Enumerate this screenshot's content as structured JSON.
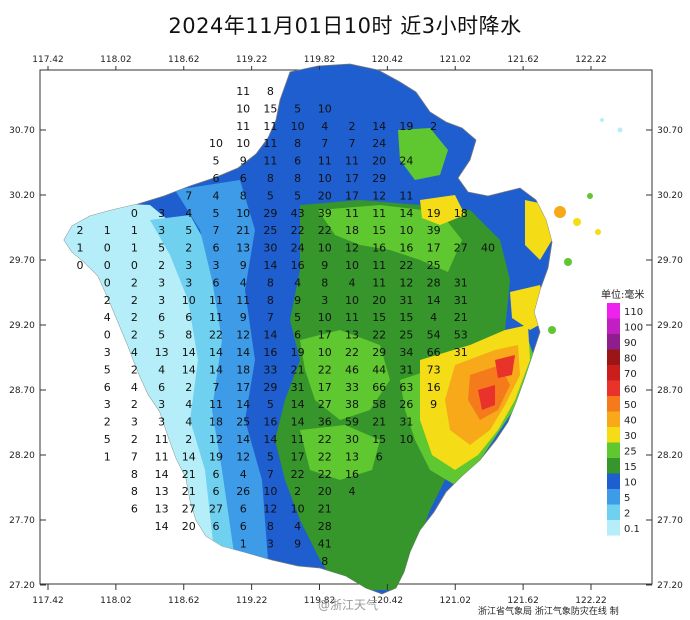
{
  "title": "2024年11月01日10时  近3小时降水",
  "axes": {
    "x_ticks": [
      "117.42",
      "118.02",
      "118.62",
      "119.22",
      "119.82",
      "120.42",
      "121.02",
      "121.62",
      "122.22"
    ],
    "y_ticks": [
      "30.70",
      "30.20",
      "29.70",
      "29.20",
      "28.70",
      "28.20",
      "27.70",
      "27.20"
    ]
  },
  "legend": {
    "title": "单位:毫米",
    "levels": [
      {
        "label": "110",
        "color": "#ee22ee"
      },
      {
        "label": "100",
        "color": "#c21fc2"
      },
      {
        "label": "90",
        "color": "#8e1e8e"
      },
      {
        "label": "80",
        "color": "#9a1616"
      },
      {
        "label": "70",
        "color": "#cc1d1d"
      },
      {
        "label": "60",
        "color": "#e8322a"
      },
      {
        "label": "50",
        "color": "#f47a1c"
      },
      {
        "label": "40",
        "color": "#f7a91a"
      },
      {
        "label": "30",
        "color": "#f4dc16"
      },
      {
        "label": "25",
        "color": "#5fc72f"
      },
      {
        "label": "15",
        "color": "#36952b"
      },
      {
        "label": "10",
        "color": "#1f5ecf"
      },
      {
        "label": "5",
        "color": "#3d9be8"
      },
      {
        "label": "2",
        "color": "#6fd0f0"
      },
      {
        "label": "0.1",
        "color": "#b5eef8"
      }
    ]
  },
  "grid_values": [
    [
      "",
      "",
      "",
      "",
      "",
      "",
      "11",
      "8",
      "",
      "",
      "",
      "",
      "",
      ""
    ],
    [
      "",
      "",
      "",
      "",
      "",
      "",
      "10",
      "15",
      "5",
      "10",
      "",
      "",
      "",
      ""
    ],
    [
      "",
      "",
      "",
      "",
      "",
      "",
      "11",
      "11",
      "10",
      "4",
      "2",
      "14",
      "19",
      "2"
    ],
    [
      "",
      "",
      "",
      "",
      "",
      "10",
      "10",
      "11",
      "8",
      "7",
      "7",
      "24",
      "",
      ""
    ],
    [
      "",
      "",
      "",
      "",
      "",
      "5",
      "9",
      "11",
      "6",
      "11",
      "11",
      "20",
      "24",
      ""
    ],
    [
      "",
      "",
      "",
      "",
      "",
      "6",
      "6",
      "8",
      "8",
      "10",
      "17",
      "29",
      "",
      ""
    ],
    [
      "",
      "",
      "",
      "",
      "7",
      "4",
      "8",
      "5",
      "5",
      "20",
      "17",
      "12",
      "11",
      ""
    ],
    [
      "",
      "",
      "0",
      "3",
      "4",
      "5",
      "10",
      "29",
      "43",
      "39",
      "11",
      "11",
      "14",
      "19",
      "18"
    ],
    [
      "2",
      "1",
      "1",
      "3",
      "5",
      "7",
      "21",
      "25",
      "22",
      "22",
      "18",
      "15",
      "10",
      "39"
    ],
    [
      "1",
      "0",
      "1",
      "5",
      "2",
      "6",
      "13",
      "30",
      "24",
      "10",
      "12",
      "16",
      "16",
      "17",
      "27",
      "40"
    ],
    [
      "0",
      "0",
      "0",
      "2",
      "3",
      "3",
      "9",
      "14",
      "16",
      "9",
      "10",
      "11",
      "22",
      "25"
    ],
    [
      "",
      "0",
      "2",
      "3",
      "3",
      "6",
      "4",
      "8",
      "4",
      "8",
      "4",
      "11",
      "12",
      "28",
      "31"
    ],
    [
      "",
      "2",
      "2",
      "3",
      "10",
      "11",
      "11",
      "8",
      "9",
      "3",
      "10",
      "20",
      "31",
      "14",
      "31"
    ],
    [
      "",
      "4",
      "2",
      "6",
      "6",
      "11",
      "9",
      "7",
      "5",
      "10",
      "11",
      "15",
      "15",
      "4",
      "21"
    ],
    [
      "",
      "0",
      "2",
      "5",
      "8",
      "22",
      "12",
      "14",
      "6",
      "17",
      "13",
      "22",
      "25",
      "54",
      "53"
    ],
    [
      "",
      "3",
      "4",
      "13",
      "14",
      "14",
      "14",
      "16",
      "19",
      "10",
      "22",
      "29",
      "34",
      "66",
      "31"
    ],
    [
      "",
      "5",
      "2",
      "4",
      "14",
      "14",
      "18",
      "33",
      "21",
      "22",
      "46",
      "44",
      "31",
      "73"
    ],
    [
      "",
      "6",
      "4",
      "6",
      "2",
      "7",
      "17",
      "29",
      "31",
      "17",
      "33",
      "66",
      "63",
      "16"
    ],
    [
      "",
      "3",
      "2",
      "3",
      "4",
      "11",
      "14",
      "5",
      "14",
      "27",
      "38",
      "58",
      "26",
      "9"
    ],
    [
      "",
      "2",
      "3",
      "3",
      "4",
      "18",
      "25",
      "16",
      "14",
      "36",
      "59",
      "21",
      "31"
    ],
    [
      "",
      "5",
      "2",
      "11",
      "2",
      "12",
      "14",
      "14",
      "11",
      "22",
      "30",
      "15",
      "10"
    ],
    [
      "",
      "1",
      "7",
      "11",
      "14",
      "19",
      "12",
      "5",
      "17",
      "22",
      "13",
      "6"
    ],
    [
      "",
      "",
      "8",
      "14",
      "21",
      "6",
      "4",
      "7",
      "22",
      "22",
      "16"
    ],
    [
      "",
      "",
      "8",
      "13",
      "21",
      "6",
      "26",
      "10",
      "2",
      "20",
      "4"
    ],
    [
      "",
      "",
      "6",
      "13",
      "27",
      "27",
      "6",
      "12",
      "10",
      "21"
    ],
    [
      "",
      "",
      "",
      "14",
      "20",
      "6",
      "6",
      "8",
      "4",
      "28"
    ],
    [
      "",
      "",
      "",
      "",
      "",
      "",
      "1",
      "3",
      "9",
      "41"
    ],
    [
      "",
      "",
      "",
      "",
      "",
      "",
      "",
      "",
      "",
      "8"
    ]
  ],
  "footer": "浙江省气象局   浙江气象防灾在线  制",
  "watermark": "@浙江天气"
}
